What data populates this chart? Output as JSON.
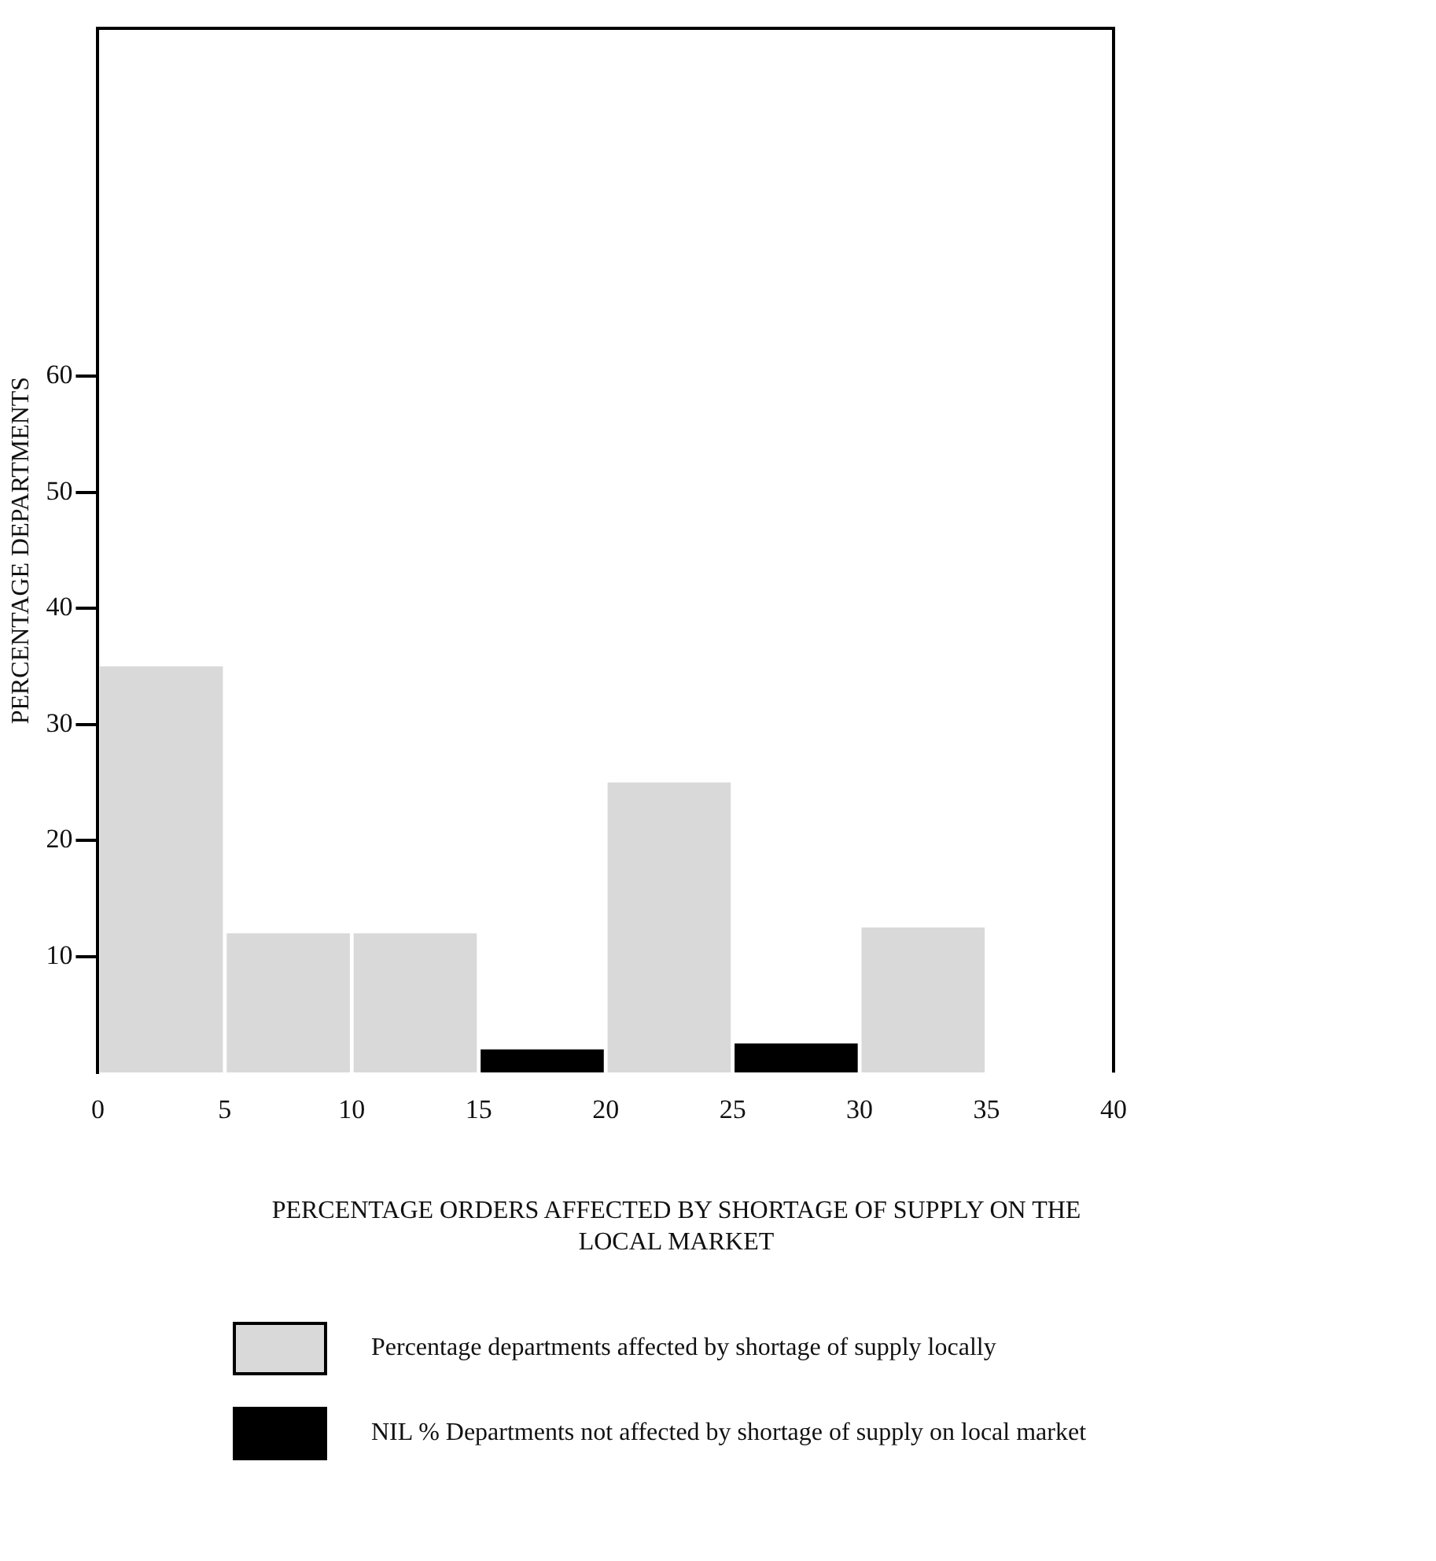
{
  "chart_data": {
    "type": "histogram",
    "xlabel": "PERCENTAGE ORDERS AFFECTED BY SHORTAGE OF SUPPLY ON THE LOCAL MARKET",
    "ylabel": "PERCENTAGE DEPARTMENTS",
    "bins": [
      0,
      5,
      10,
      15,
      20,
      25,
      30,
      35,
      40
    ],
    "series": [
      {
        "name": "Percentage departments affected by shortage of supply locally",
        "color": "#d9d9d9",
        "values": [
          35,
          12,
          12,
          null,
          25,
          null,
          12.5,
          null
        ]
      },
      {
        "name": "NIL % Departments not affected by shortage of supply on local market",
        "color": "#000000",
        "values": [
          null,
          null,
          null,
          2,
          null,
          2.5,
          null,
          null
        ]
      }
    ],
    "xlim": [
      0,
      40
    ],
    "xticks": [
      0,
      5,
      10,
      15,
      20,
      25,
      30,
      35,
      40
    ],
    "ylim": [
      0,
      90
    ],
    "yticks": [
      10,
      20,
      30,
      40,
      50,
      60
    ],
    "grid": false,
    "legend": "bottom"
  }
}
